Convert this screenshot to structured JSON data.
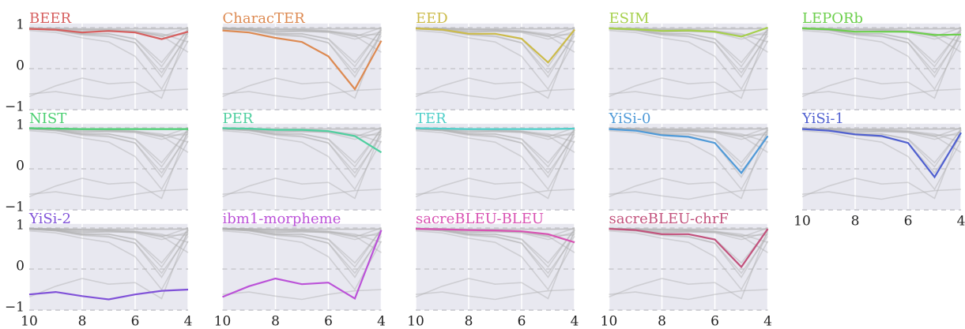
{
  "chart_data": {
    "type": "line",
    "x": [
      10,
      9,
      8,
      7,
      6,
      5,
      4
    ],
    "xlim": [
      10,
      4
    ],
    "ylim": [
      -1,
      1.1
    ],
    "xticks": [
      10,
      8,
      6,
      4
    ],
    "yticks": [
      {
        "value": -1,
        "label": "−1"
      },
      0,
      1
    ],
    "grid": true,
    "background_color": "#e8e8f0",
    "context_color": "#b0b0b0",
    "series": [
      {
        "name": "BEER",
        "color": "#d65f5f",
        "values": [
          0.97,
          0.95,
          0.88,
          0.92,
          0.88,
          0.72,
          0.9
        ]
      },
      {
        "name": "CharacTER",
        "color": "#dd8a52",
        "values": [
          0.93,
          0.88,
          0.75,
          0.65,
          0.3,
          -0.5,
          0.68
        ]
      },
      {
        "name": "EED",
        "color": "#ccbb4a",
        "values": [
          0.98,
          0.95,
          0.85,
          0.85,
          0.73,
          0.15,
          0.95
        ]
      },
      {
        "name": "ESIM",
        "color": "#a6d04c",
        "values": [
          0.98,
          0.96,
          0.92,
          0.93,
          0.9,
          0.78,
          1.0
        ]
      },
      {
        "name": "LEPORb",
        "color": "#6ccf4c",
        "values": [
          0.98,
          0.96,
          0.9,
          0.9,
          0.9,
          0.82,
          0.83
        ]
      },
      {
        "name": "NIST",
        "color": "#4ccf72",
        "values": [
          0.99,
          0.98,
          0.97,
          0.97,
          0.97,
          0.97,
          0.97
        ]
      },
      {
        "name": "PER",
        "color": "#4fcf9f",
        "values": [
          0.99,
          0.98,
          0.95,
          0.95,
          0.92,
          0.8,
          0.4
        ]
      },
      {
        "name": "TER",
        "color": "#4fcfc9",
        "values": [
          0.99,
          0.98,
          0.97,
          0.97,
          0.97,
          0.97,
          0.98
        ]
      },
      {
        "name": "YiSi-0",
        "color": "#4f9ad8",
        "values": [
          0.97,
          0.93,
          0.82,
          0.78,
          0.63,
          -0.1,
          0.8
        ]
      },
      {
        "name": "YiSi-1",
        "color": "#5060d0",
        "values": [
          0.97,
          0.93,
          0.84,
          0.8,
          0.63,
          -0.2,
          0.88
        ]
      },
      {
        "name": "YiSi-2",
        "color": "#8052d8",
        "values": [
          -0.62,
          -0.56,
          -0.66,
          -0.74,
          -0.62,
          -0.53,
          -0.5
        ]
      },
      {
        "name": "ibm1-morpheme",
        "color": "#bb52d8",
        "values": [
          -0.68,
          -0.42,
          -0.23,
          -0.37,
          -0.33,
          -0.72,
          0.95
        ]
      },
      {
        "name": "sacreBLEU-BLEU",
        "color": "#d852b2",
        "values": [
          0.98,
          0.97,
          0.95,
          0.94,
          0.92,
          0.85,
          0.65
        ]
      },
      {
        "name": "sacreBLEU-chrF",
        "color": "#c2527c",
        "values": [
          0.98,
          0.95,
          0.85,
          0.85,
          0.72,
          0.05,
          0.98
        ]
      }
    ]
  }
}
